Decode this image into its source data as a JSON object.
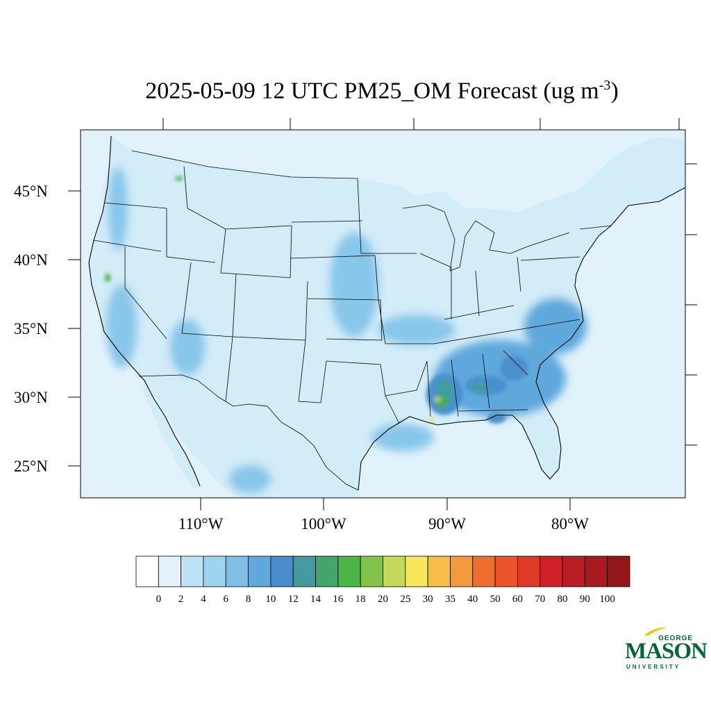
{
  "title": {
    "text": "2025-05-09 12 UTC PM25_OM Forecast (ug m",
    "superscript": "-3",
    "close": ")"
  },
  "map": {
    "variable": "PM25_OM",
    "lat_labels": [
      "45°N",
      "40°N",
      "35°N",
      "30°N",
      "25°N"
    ],
    "lon_labels": [
      "110°W",
      "100°W",
      "90°W",
      "80°W"
    ],
    "colors": {
      "ocean": "#e1f2fb",
      "land_low": "#d2ecf8",
      "land_mid": "#b5ddf4",
      "moderate": "#88c6ea",
      "elevated": "#5ea8dc",
      "high": "#4a90cf",
      "teal": "#3f9e9a",
      "green": "#4caf50",
      "lime": "#b2d34a",
      "yellow": "#f2e355",
      "border": "#000000"
    }
  },
  "colorbar": {
    "labels": [
      "0",
      "2",
      "4",
      "6",
      "8",
      "10",
      "12",
      "14",
      "16",
      "18",
      "20",
      "25",
      "30",
      "35",
      "40",
      "50",
      "60",
      "70",
      "80",
      "90",
      "100"
    ],
    "colors": [
      "#ffffff",
      "#e1f2fb",
      "#bde3f6",
      "#9dd5f1",
      "#81bde5",
      "#62a7dc",
      "#4a8dcb",
      "#459a9d",
      "#44a56a",
      "#4db548",
      "#82c449",
      "#c4d859",
      "#f6e75b",
      "#f5be48",
      "#f4993d",
      "#ef6d2f",
      "#e9542b",
      "#de3a27",
      "#cf2129",
      "#ba1d24",
      "#a81a20",
      "#931619"
    ]
  },
  "logo": {
    "top": "GEORGE",
    "main": "MASON",
    "bottom": "UNIVERSITY",
    "color": "#006633",
    "accent": "#f2c200"
  }
}
